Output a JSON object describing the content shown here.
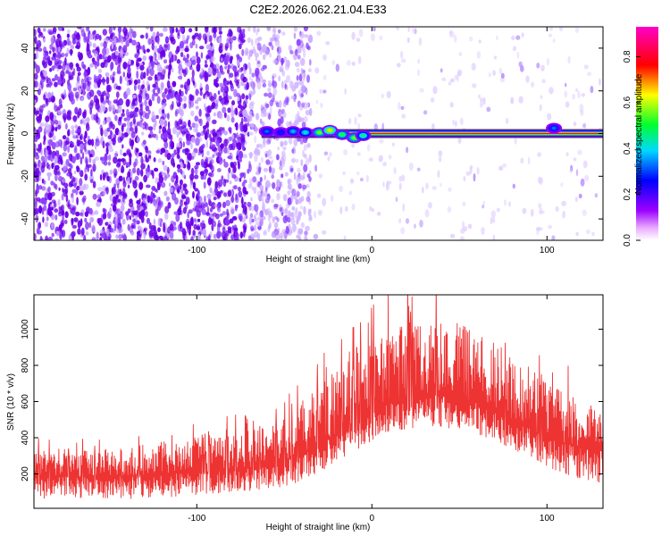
{
  "figure": {
    "title": "C2E2.2026.062.21.04.E33"
  },
  "chart_data": [
    {
      "type": "heatmap",
      "xlabel": "Height of straight line (km)",
      "ylabel": "Frequency (Hz)",
      "xlim": [
        -193,
        132
      ],
      "ylim": [
        -50,
        50
      ],
      "xticks": [
        -100,
        0,
        100
      ],
      "yticks": [
        -40,
        -20,
        0,
        20,
        40
      ],
      "grid": false,
      "colorbar": {
        "label": "Normalized spectral amplitude",
        "range": [
          0.0,
          0.93
        ],
        "ticks": [
          0.0,
          0.2,
          0.4,
          0.6,
          0.8
        ],
        "colormap": "rainbow (magenta-blue-cyan-green-yellow-red-magenta), white at zero"
      },
      "regions": [
        {
          "x": [
            -193,
            -70
          ],
          "density": "high",
          "color": "#6a00e8"
        },
        {
          "x": [
            -70,
            -35
          ],
          "density": "medium",
          "color": "#a066ff"
        },
        {
          "x": [
            -35,
            132
          ],
          "density": "sparse",
          "color": "#d9c2ff"
        }
      ],
      "carrier_line": {
        "frequency": 0,
        "x_start": -63,
        "x_end": 132,
        "peak_amplitude": 0.9
      },
      "carrier_blobs": [
        {
          "x": -60,
          "f": 1.0,
          "amp": 0.35
        },
        {
          "x": -52,
          "f": 0.5,
          "amp": 0.3
        },
        {
          "x": -45,
          "f": 1.0,
          "amp": 0.4
        },
        {
          "x": -38,
          "f": 0.5,
          "amp": 0.45
        },
        {
          "x": -30,
          "f": 0.5,
          "amp": 0.6
        },
        {
          "x": -24,
          "f": 1.5,
          "amp": 0.7
        },
        {
          "x": -17,
          "f": -0.5,
          "amp": 0.55
        },
        {
          "x": -10,
          "f": -2.0,
          "amp": 0.6
        },
        {
          "x": -5,
          "f": -1.0,
          "amp": 0.5
        },
        {
          "x": 104,
          "f": 2.5,
          "amp": 0.35
        }
      ]
    },
    {
      "type": "line",
      "xlabel": "Height of straight line (km)",
      "ylabel": "SNR (10 * v/v)",
      "xlim": [
        -193,
        132
      ],
      "ylim": [
        10,
        1190
      ],
      "xticks": [
        -100,
        0,
        100
      ],
      "yticks": [
        200,
        400,
        600,
        800,
        1000
      ],
      "grid": false,
      "series": [
        {
          "color": "#ee3333",
          "x": [
            -193,
            -180,
            -160,
            -140,
            -120,
            -100,
            -80,
            -60,
            -50,
            -40,
            -30,
            -20,
            -10,
            0,
            10,
            20,
            30,
            40,
            50,
            60,
            70,
            80,
            90,
            100,
            110,
            120,
            132
          ],
          "mean": [
            185,
            190,
            180,
            190,
            200,
            205,
            220,
            240,
            270,
            310,
            360,
            420,
            480,
            540,
            590,
            620,
            640,
            640,
            620,
            590,
            550,
            500,
            450,
            400,
            370,
            350,
            330
          ],
          "band_low": [
            60,
            60,
            60,
            60,
            70,
            80,
            100,
            110,
            130,
            160,
            210,
            260,
            320,
            380,
            420,
            450,
            460,
            460,
            440,
            420,
            380,
            340,
            290,
            240,
            200,
            170,
            140
          ],
          "band_high": [
            330,
            340,
            330,
            350,
            380,
            400,
            420,
            460,
            520,
            600,
            700,
            780,
            860,
            920,
            980,
            1040,
            1060,
            1060,
            1030,
            990,
            930,
            870,
            800,
            720,
            650,
            600,
            560
          ],
          "max_peak": {
            "x": 23,
            "y": 1180
          }
        }
      ]
    }
  ]
}
